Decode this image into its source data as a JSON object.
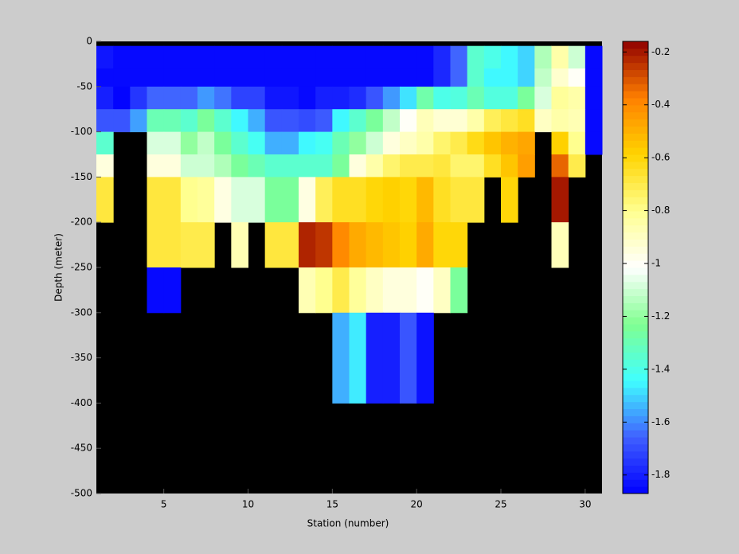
{
  "chart_data": {
    "type": "heatmap",
    "xlabel": "Station (number)",
    "ylabel": "Depth (meter)",
    "x_edges": [
      1,
      2,
      3,
      4,
      5,
      6,
      7,
      8,
      9,
      10,
      11,
      12,
      13,
      14,
      15,
      16,
      17,
      18,
      19,
      20,
      21,
      22,
      23,
      24,
      25,
      26,
      27,
      28,
      29,
      30,
      31
    ],
    "y_edges": [
      -5,
      -30,
      -50,
      -75,
      -100,
      -125,
      -150,
      -200,
      -250,
      -300,
      -400
    ],
    "values": [
      [
        -1.82,
        -1.85,
        -1.85,
        -1.85,
        -1.85,
        -1.85,
        -1.85,
        -1.85,
        -1.85,
        -1.85,
        -1.85,
        -1.85,
        -1.85,
        -1.85,
        -1.85,
        -1.85,
        -1.85,
        -1.85,
        -1.85,
        -1.85,
        -1.78,
        -1.65,
        -1.35,
        -1.4,
        -1.45,
        -1.5,
        -1.15,
        -0.85,
        -1.1,
        -1.85
      ],
      [
        -1.85,
        -1.85,
        -1.85,
        -1.85,
        -1.85,
        -1.85,
        -1.85,
        -1.85,
        -1.85,
        -1.85,
        -1.85,
        -1.85,
        -1.85,
        -1.85,
        -1.85,
        -1.85,
        -1.85,
        -1.85,
        -1.85,
        -1.85,
        -1.78,
        -1.65,
        -1.35,
        -1.45,
        -1.45,
        -1.5,
        -1.12,
        -0.92,
        -1.0,
        -1.85
      ],
      [
        -1.8,
        -1.86,
        -1.75,
        -1.65,
        -1.65,
        -1.65,
        -1.58,
        -1.63,
        -1.72,
        -1.72,
        -1.82,
        -1.82,
        -1.85,
        -1.8,
        -1.8,
        -1.77,
        -1.68,
        -1.58,
        -1.48,
        -1.28,
        -1.4,
        -1.38,
        -1.3,
        -1.38,
        -1.38,
        -1.25,
        -1.08,
        -0.82,
        -0.85,
        -1.85
      ],
      [
        -1.68,
        -1.68,
        -1.57,
        -1.3,
        -1.3,
        -1.35,
        -1.25,
        -1.35,
        -1.45,
        -1.55,
        -1.68,
        -1.68,
        -1.7,
        -1.67,
        -1.45,
        -1.35,
        -1.25,
        -1.12,
        -1.0,
        -0.88,
        -0.93,
        -0.93,
        -0.85,
        -0.72,
        -0.68,
        -0.64,
        -0.9,
        -0.85,
        -0.87,
        -1.85
      ],
      [
        -1.35,
        null,
        null,
        -1.08,
        -1.08,
        -1.2,
        -1.12,
        -1.25,
        -1.35,
        -1.42,
        -1.55,
        -1.55,
        -1.45,
        -1.42,
        -1.3,
        -1.2,
        -1.1,
        -0.95,
        -0.9,
        -0.85,
        -0.75,
        -0.7,
        -0.62,
        -0.55,
        -0.5,
        -0.47,
        null,
        -0.58,
        -0.8,
        -1.85
      ],
      [
        -0.95,
        null,
        null,
        -0.95,
        -0.95,
        -1.1,
        -1.1,
        -1.15,
        -1.25,
        -1.3,
        -1.35,
        -1.35,
        -1.35,
        -1.35,
        -1.25,
        -0.95,
        -0.85,
        -0.75,
        -0.7,
        -0.7,
        -0.68,
        -0.75,
        -0.75,
        -0.64,
        -0.55,
        -0.45,
        null,
        -0.33,
        -0.7,
        null
      ],
      [
        -0.68,
        null,
        null,
        -0.68,
        -0.68,
        -0.8,
        -0.82,
        -0.96,
        -1.08,
        -1.08,
        -1.25,
        -1.25,
        -0.96,
        -0.72,
        -0.64,
        -0.64,
        -0.6,
        -0.58,
        -0.6,
        -0.52,
        -0.64,
        -0.68,
        -0.68,
        null,
        -0.6,
        null,
        null,
        -0.2,
        null,
        null
      ],
      [
        null,
        null,
        null,
        -0.68,
        -0.68,
        -0.7,
        -0.7,
        null,
        -0.87,
        null,
        -0.68,
        -0.68,
        -0.22,
        -0.25,
        -0.4,
        -0.48,
        -0.52,
        -0.55,
        -0.58,
        -0.48,
        -0.6,
        -0.6,
        null,
        null,
        null,
        null,
        null,
        -0.88,
        null,
        null
      ],
      [
        null,
        null,
        null,
        -1.85,
        -1.85,
        null,
        null,
        null,
        null,
        null,
        null,
        null,
        -0.87,
        -0.8,
        -0.7,
        -0.82,
        -0.9,
        -0.95,
        -0.95,
        -1.0,
        -0.9,
        -1.25,
        null,
        null,
        null,
        null,
        null,
        null,
        null,
        null
      ],
      [
        null,
        null,
        null,
        null,
        null,
        null,
        null,
        null,
        null,
        null,
        null,
        null,
        null,
        null,
        -1.55,
        -1.47,
        -1.8,
        -1.8,
        -1.68,
        -1.83,
        null,
        null,
        null,
        null,
        null,
        null,
        null,
        null,
        null,
        null
      ]
    ],
    "xlim": [
      1,
      31
    ],
    "ylim": [
      -500,
      0
    ],
    "xticks": [
      5,
      10,
      15,
      20,
      25,
      30
    ],
    "yticks": [
      -500,
      -450,
      -400,
      -350,
      -300,
      -250,
      -200,
      -150,
      -100,
      -50,
      0
    ],
    "clim": [
      -1.87,
      -0.16
    ],
    "cticks": [
      -1.8,
      -1.6,
      -1.4,
      -1.2,
      -1,
      -0.8,
      -0.6,
      -0.4,
      -0.2
    ],
    "colormap": [
      "#0000ff",
      "#4060ff",
      "#40ffff",
      "#80ff90",
      "#ffffff",
      "#ffff90",
      "#ffd400",
      "#ff8000",
      "#900000"
    ],
    "background": "#000000"
  }
}
